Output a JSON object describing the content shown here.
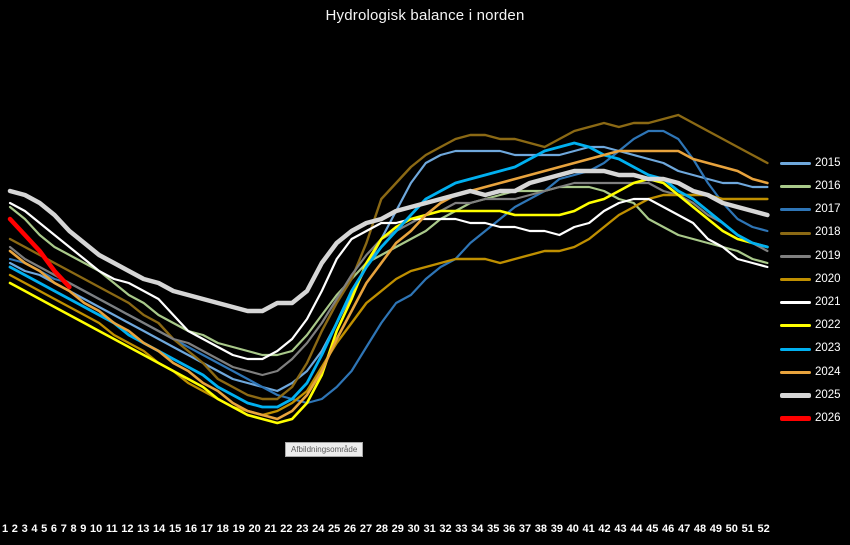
{
  "title": "Hydrologisk balance i norden",
  "plot_area_tooltip": "Afbildningsområde",
  "colors": {
    "background": "#000000",
    "title_text": "#F5F5F5",
    "axis_text": "#FFFFFF",
    "legend_text": "#FFFFFF"
  },
  "chart_data": {
    "type": "line",
    "title": "Hydrologisk balance i norden",
    "xlabel": "",
    "ylabel": "",
    "x_axis_ticks_visible": true,
    "y_axis_visible": false,
    "grid": false,
    "legend_position": "right",
    "x": [
      1,
      2,
      3,
      4,
      5,
      6,
      7,
      8,
      9,
      10,
      11,
      12,
      13,
      14,
      15,
      16,
      17,
      18,
      19,
      20,
      21,
      22,
      23,
      24,
      25,
      26,
      27,
      28,
      29,
      30,
      31,
      32,
      33,
      34,
      35,
      36,
      37,
      38,
      39,
      40,
      41,
      42,
      43,
      44,
      45,
      46,
      47,
      48,
      49,
      50,
      51,
      52
    ],
    "value_scale_note": "relative hydrological balance index 0-100 (no y-axis shown in chart)",
    "ylim": [
      0,
      105
    ],
    "series": [
      {
        "name": "2015",
        "color": "#6FA8DC",
        "stroke_width": 2.2,
        "values": [
          63,
          61,
          60,
          58,
          56,
          54,
          52,
          50,
          48,
          46,
          44,
          42,
          40,
          38,
          36,
          34,
          33,
          32,
          31,
          33,
          36,
          41,
          48,
          55,
          62,
          69,
          76,
          83,
          88,
          90,
          91,
          91,
          91,
          91,
          90,
          90,
          90,
          90,
          91,
          92,
          92,
          91,
          90,
          89,
          88,
          86,
          85,
          84,
          83,
          83,
          82,
          82
        ]
      },
      {
        "name": "2016",
        "color": "#A9C98A",
        "stroke_width": 2.2,
        "values": [
          77,
          74,
          70,
          67,
          65,
          63,
          61,
          58,
          55,
          53,
          50,
          48,
          46,
          45,
          43,
          42,
          41,
          40,
          40,
          41,
          45,
          50,
          55,
          59,
          63,
          65,
          67,
          69,
          71,
          74,
          76,
          78,
          79,
          80,
          81,
          81,
          81,
          82,
          82,
          82,
          81,
          79,
          78,
          74,
          72,
          70,
          69,
          68,
          67,
          66,
          64,
          63
        ]
      },
      {
        "name": "2017",
        "color": "#2E75B6",
        "stroke_width": 2.2,
        "values": [
          64,
          63,
          61,
          59,
          58,
          56,
          54,
          52,
          50,
          48,
          46,
          44,
          42,
          40,
          38,
          36,
          34,
          32,
          30,
          29,
          28,
          29,
          32,
          36,
          42,
          48,
          53,
          55,
          59,
          62,
          64,
          68,
          71,
          74,
          77,
          79,
          81,
          84,
          85,
          86,
          88,
          91,
          94,
          96,
          96,
          94,
          89,
          83,
          78,
          74,
          72,
          71
        ]
      },
      {
        "name": "2018",
        "color": "#8B6914",
        "stroke_width": 2.4,
        "values": [
          69,
          67,
          65,
          63,
          61,
          59,
          57,
          55,
          53,
          50,
          48,
          44,
          41,
          38,
          34,
          32,
          30,
          29,
          29,
          32,
          38,
          46,
          53,
          59,
          68,
          79,
          83,
          87,
          90,
          92,
          94,
          95,
          95,
          94,
          94,
          93,
          92,
          94,
          96,
          97,
          98,
          97,
          98,
          98,
          99,
          100,
          98,
          96,
          94,
          92,
          90,
          88
        ]
      },
      {
        "name": "2019",
        "color": "#7F7F7F",
        "stroke_width": 2.2,
        "values": [
          67,
          64,
          62,
          60,
          58,
          56,
          54,
          52,
          50,
          48,
          46,
          44,
          43,
          41,
          39,
          37,
          36,
          35,
          36,
          39,
          43,
          48,
          54,
          60,
          65,
          69,
          71,
          73,
          75,
          76,
          78,
          78,
          79,
          79,
          79,
          80,
          81,
          82,
          83,
          83,
          83,
          83,
          83,
          83,
          81,
          80,
          78,
          75,
          73,
          70,
          68,
          66
        ]
      },
      {
        "name": "2020",
        "color": "#BF8F00",
        "stroke_width": 2.4,
        "values": [
          60,
          58,
          56,
          54,
          52,
          50,
          48,
          45,
          43,
          41,
          38,
          36,
          33,
          31,
          29,
          27,
          26,
          25,
          26,
          28,
          31,
          37,
          43,
          48,
          53,
          56,
          59,
          61,
          62,
          63,
          64,
          64,
          64,
          63,
          64,
          65,
          66,
          66,
          67,
          69,
          72,
          75,
          77,
          79,
          80,
          80,
          80,
          80,
          79,
          79,
          79,
          79
        ]
      },
      {
        "name": "2021",
        "color": "#FFFFFF",
        "stroke_width": 2.2,
        "values": [
          78,
          76,
          73,
          70,
          67,
          64,
          61,
          59,
          58,
          56,
          54,
          50,
          46,
          44,
          42,
          40,
          39,
          39,
          41,
          44,
          49,
          56,
          64,
          69,
          71,
          73,
          73,
          74,
          74,
          74,
          74,
          73,
          73,
          72,
          72,
          71,
          71,
          70,
          72,
          73,
          76,
          78,
          79,
          79,
          77,
          75,
          73,
          69,
          67,
          64,
          63,
          62
        ]
      },
      {
        "name": "2022",
        "color": "#FFFF00",
        "stroke_width": 2.6,
        "values": [
          58,
          56,
          54,
          52,
          50,
          48,
          46,
          44,
          42,
          40,
          38,
          36,
          34,
          32,
          29,
          27,
          25,
          24,
          23,
          24,
          28,
          35,
          46,
          54,
          63,
          69,
          72,
          74,
          75,
          76,
          76,
          76,
          76,
          76,
          75,
          75,
          75,
          75,
          76,
          78,
          79,
          81,
          83,
          84,
          83,
          80,
          77,
          74,
          71,
          69,
          68,
          67
        ]
      },
      {
        "name": "2023",
        "color": "#00B0F0",
        "stroke_width": 2.8,
        "values": [
          62,
          60,
          58,
          56,
          54,
          52,
          50,
          48,
          45,
          43,
          41,
          39,
          37,
          35,
          32,
          30,
          28,
          27,
          27,
          29,
          33,
          40,
          48,
          56,
          62,
          67,
          71,
          75,
          79,
          81,
          83,
          84,
          85,
          86,
          87,
          89,
          91,
          92,
          93,
          92,
          90,
          89,
          87,
          85,
          84,
          81,
          79,
          76,
          73,
          70,
          68,
          67
        ]
      },
      {
        "name": "2024",
        "color": "#E8A33D",
        "stroke_width": 2.6,
        "values": [
          66,
          63,
          61,
          58,
          56,
          53,
          51,
          48,
          46,
          43,
          41,
          38,
          36,
          33,
          31,
          28,
          26,
          25,
          24,
          26,
          30,
          36,
          44,
          51,
          58,
          63,
          68,
          71,
          75,
          78,
          80,
          81,
          82,
          83,
          84,
          85,
          86,
          87,
          88,
          89,
          90,
          91,
          91,
          91,
          91,
          91,
          89,
          88,
          87,
          86,
          84,
          83
        ]
      },
      {
        "name": "2025",
        "color": "#D6D6D6",
        "stroke_width": 4.5,
        "values": [
          81,
          80,
          78,
          75,
          71,
          68,
          65,
          63,
          61,
          59,
          58,
          56,
          55,
          54,
          53,
          52,
          51,
          51,
          53,
          53,
          56,
          63,
          68,
          71,
          73,
          74,
          76,
          77,
          78,
          79,
          80,
          81,
          80,
          81,
          81,
          83,
          84,
          85,
          86,
          86,
          86,
          85,
          85,
          84,
          84,
          83,
          81,
          80,
          78,
          77,
          76,
          75
        ]
      },
      {
        "name": "2026",
        "color": "#FF0000",
        "stroke_width": 4.5,
        "values": [
          74,
          70,
          66,
          61,
          57
        ]
      }
    ]
  }
}
